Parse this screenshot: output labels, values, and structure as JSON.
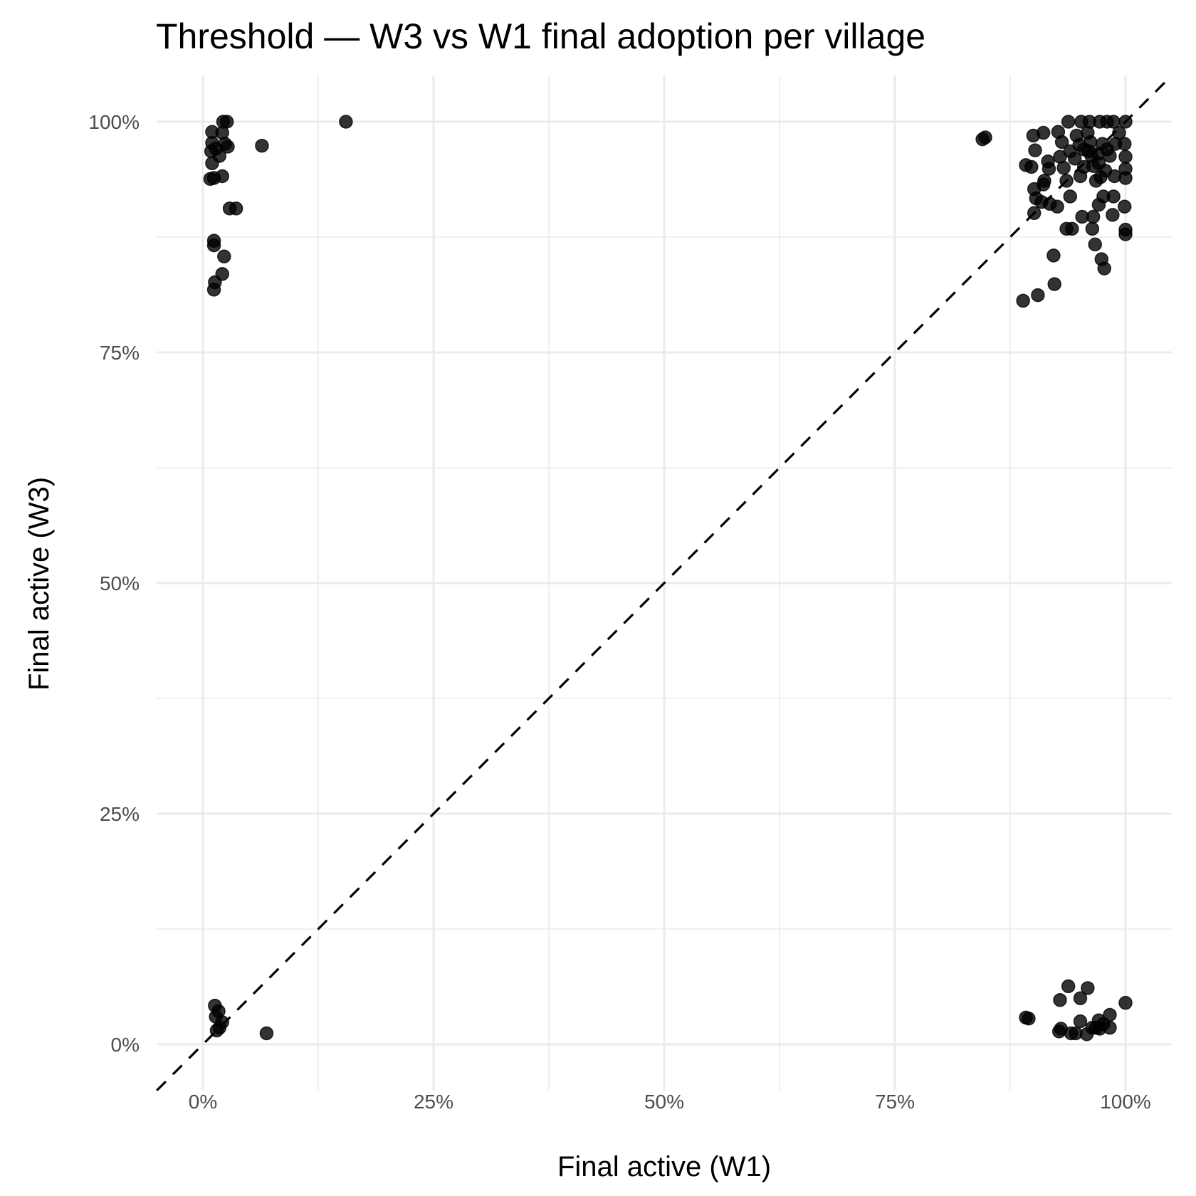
{
  "chart_data": {
    "type": "scatter",
    "title": "Threshold — W3 vs W1 final adoption per village",
    "xlabel": "Final active (W1)",
    "ylabel": "Final active (W3)",
    "xlim": [
      -5,
      105
    ],
    "ylim": [
      -5,
      105
    ],
    "x_ticks": [
      0,
      25,
      50,
      75,
      100
    ],
    "y_ticks": [
      0,
      25,
      50,
      75,
      100
    ],
    "x_tick_labels": [
      "0%",
      "25%",
      "50%",
      "75%",
      "100%"
    ],
    "y_tick_labels": [
      "0%",
      "25%",
      "50%",
      "75%",
      "100%"
    ],
    "grid": true,
    "reference_line": {
      "type": "identity",
      "style": "dashed",
      "color": "#000000"
    },
    "point_color": "#000000",
    "point_opacity": 0.8,
    "points": [
      [
        1.0,
        98.9
      ],
      [
        1.0,
        97.7
      ],
      [
        0.9,
        96.8
      ],
      [
        1.0,
        95.5
      ],
      [
        0.8,
        93.8
      ],
      [
        1.2,
        93.9
      ],
      [
        2.1,
        94.1
      ],
      [
        2.2,
        100
      ],
      [
        2.6,
        100
      ],
      [
        2.1,
        98.8
      ],
      [
        2.4,
        97.6
      ],
      [
        2.7,
        97.3
      ],
      [
        1.8,
        96.3
      ],
      [
        1.4,
        97.1
      ],
      [
        2.9,
        90.6
      ],
      [
        3.6,
        90.6
      ],
      [
        1.2,
        87.1
      ],
      [
        1.2,
        86.6
      ],
      [
        2.3,
        85.4
      ],
      [
        2.1,
        83.5
      ],
      [
        1.3,
        82.6
      ],
      [
        1.2,
        81.8
      ],
      [
        6.4,
        97.4
      ],
      [
        15.5,
        100
      ],
      [
        1.3,
        4.2
      ],
      [
        1.4,
        3.0
      ],
      [
        1.7,
        3.6
      ],
      [
        2.1,
        2.4
      ],
      [
        1.5,
        1.5
      ],
      [
        1.8,
        1.8
      ],
      [
        6.9,
        1.2
      ],
      [
        93.8,
        6.3
      ],
      [
        95.9,
        6.1
      ],
      [
        92.9,
        4.8
      ],
      [
        95.1,
        5.0
      ],
      [
        100,
        4.5
      ],
      [
        89.2,
        2.9
      ],
      [
        89.5,
        2.8
      ],
      [
        93.0,
        1.7
      ],
      [
        92.8,
        1.4
      ],
      [
        94.1,
        1.2
      ],
      [
        94.6,
        1.2
      ],
      [
        95.1,
        2.5
      ],
      [
        95.8,
        1.1
      ],
      [
        96.4,
        1.8
      ],
      [
        97.1,
        2.6
      ],
      [
        97.2,
        1.7
      ],
      [
        97.6,
        2.2
      ],
      [
        98.3,
        3.2
      ],
      [
        98.3,
        1.8
      ],
      [
        96.8,
        1.8
      ],
      [
        84.5,
        98.1
      ],
      [
        84.8,
        98.3
      ],
      [
        90.0,
        98.5
      ],
      [
        91.1,
        98.8
      ],
      [
        90.2,
        96.9
      ],
      [
        89.2,
        95.3
      ],
      [
        89.8,
        95.1
      ],
      [
        91.6,
        95.7
      ],
      [
        91.7,
        94.9
      ],
      [
        91.2,
        93.6
      ],
      [
        91.1,
        93.2
      ],
      [
        90.1,
        92.7
      ],
      [
        90.3,
        91.7
      ],
      [
        90.9,
        91.3
      ],
      [
        91.8,
        91.1
      ],
      [
        92.6,
        90.8
      ],
      [
        90.1,
        90.1
      ],
      [
        92.7,
        98.9
      ],
      [
        93.8,
        100
      ],
      [
        93.1,
        97.8
      ],
      [
        93.3,
        95.0
      ],
      [
        93.6,
        93.6
      ],
      [
        94.0,
        91.9
      ],
      [
        93.6,
        88.4
      ],
      [
        94.2,
        88.4
      ],
      [
        95.3,
        89.7
      ],
      [
        96.5,
        89.7
      ],
      [
        96.4,
        88.4
      ],
      [
        96.7,
        86.7
      ],
      [
        97.4,
        85.1
      ],
      [
        97.7,
        84.1
      ],
      [
        92.2,
        85.5
      ],
      [
        92.3,
        82.4
      ],
      [
        90.5,
        81.2
      ],
      [
        88.9,
        80.6
      ],
      [
        97.6,
        91.9
      ],
      [
        97.1,
        91.0
      ],
      [
        98.7,
        91.9
      ],
      [
        99.9,
        90.8
      ],
      [
        98.6,
        89.9
      ],
      [
        100,
        88.3
      ],
      [
        100,
        87.8
      ],
      [
        95.2,
        100
      ],
      [
        96.1,
        100
      ],
      [
        97.2,
        100
      ],
      [
        98.0,
        100
      ],
      [
        98.7,
        100
      ],
      [
        100,
        100
      ],
      [
        99.9,
        97.6
      ],
      [
        100,
        96.2
      ],
      [
        100,
        94.9
      ],
      [
        100,
        93.9
      ],
      [
        98.8,
        94.1
      ],
      [
        94.7,
        98.5
      ],
      [
        95.5,
        97.0
      ],
      [
        96.3,
        96.3
      ],
      [
        96.8,
        93.6
      ],
      [
        94.5,
        96.0
      ],
      [
        97.5,
        97.6
      ],
      [
        98.3,
        96.3
      ],
      [
        95.5,
        95.1
      ],
      [
        97.1,
        95.5
      ],
      [
        98.9,
        97.6
      ],
      [
        92.9,
        96.2
      ],
      [
        95.9,
        98.8
      ],
      [
        99.3,
        98.8
      ],
      [
        95.1,
        94.1
      ],
      [
        97.8,
        94.7
      ],
      [
        96.0,
        96.8
      ],
      [
        97.0,
        96.5
      ],
      [
        95.0,
        97.5
      ],
      [
        96.5,
        95.2
      ],
      [
        98.0,
        97.0
      ],
      [
        94.0,
        96.8
      ],
      [
        96.2,
        97.8
      ],
      [
        97.3,
        94.0
      ]
    ]
  }
}
